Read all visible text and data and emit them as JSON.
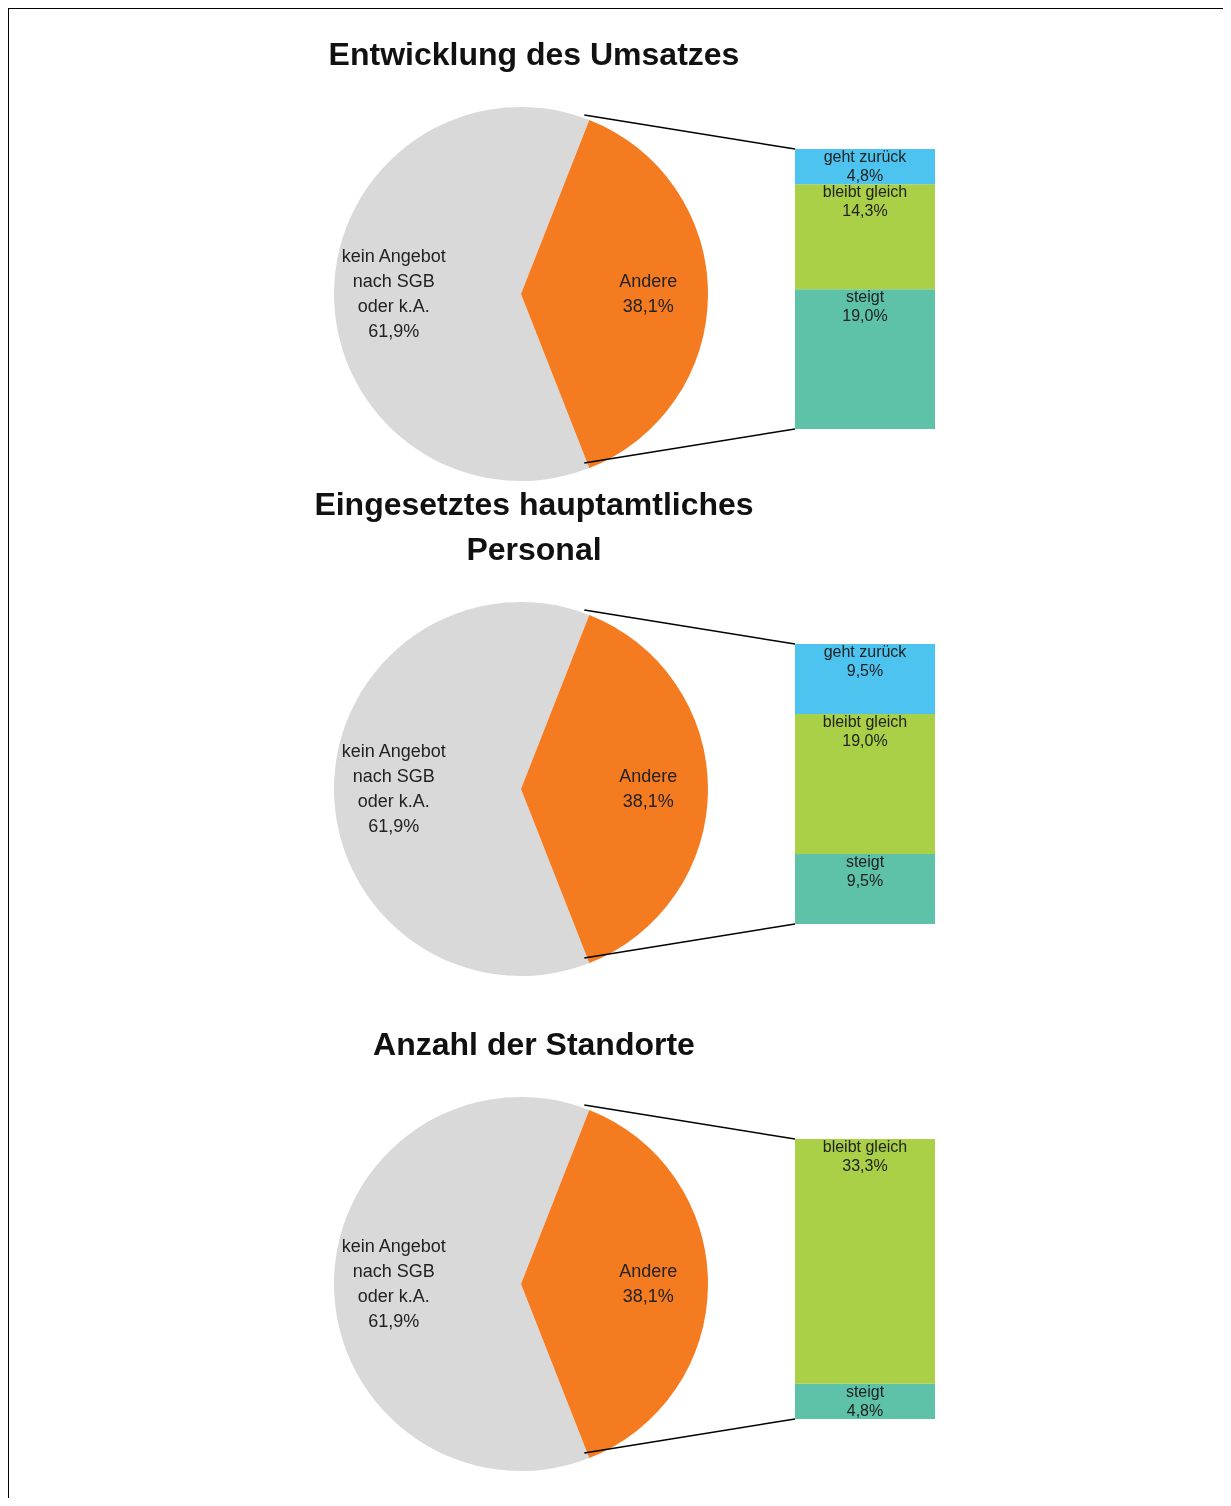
{
  "chart_data": [
    {
      "type": "pie",
      "title": "Entwicklung des Umsatzes",
      "categories": [
        "kein Angebot nach SGB oder k.A.",
        "Andere"
      ],
      "values": [
        61.9,
        38.1
      ],
      "colors": [
        "#d9d9d9",
        "#f47b20"
      ],
      "value_labels": [
        "61,9%",
        "38,1%"
      ]
    },
    {
      "type": "bar",
      "stacked": true,
      "categories": [
        null
      ],
      "series": [
        {
          "name": "steigt",
          "color": "#5ec2a8",
          "values": [
            19.0
          ],
          "value_labels": [
            "19,0%"
          ]
        },
        {
          "name": "bleibt gleich",
          "color": "#a9d046",
          "values": [
            14.3
          ],
          "value_labels": [
            "14,3%"
          ]
        },
        {
          "name": "geht zurück",
          "color": "#4dc3f0",
          "values": [
            4.8
          ],
          "value_labels": [
            "4,8%"
          ]
        }
      ]
    },
    {
      "type": "pie",
      "title": "Eingesetztes hauptamtliches Personal",
      "categories": [
        "kein Angebot nach SGB oder k.A.",
        "Andere"
      ],
      "values": [
        61.9,
        38.1
      ],
      "colors": [
        "#d9d9d9",
        "#f47b20"
      ],
      "value_labels": [
        "61,9%",
        "38,1%"
      ]
    },
    {
      "type": "bar",
      "stacked": true,
      "categories": [
        null
      ],
      "series": [
        {
          "name": "steigt",
          "color": "#5ec2a8",
          "values": [
            9.5
          ],
          "value_labels": [
            "9,5%"
          ]
        },
        {
          "name": "bleibt gleich",
          "color": "#a9d046",
          "values": [
            19.0
          ],
          "value_labels": [
            "19,0%"
          ]
        },
        {
          "name": "geht zurück",
          "color": "#4dc3f0",
          "values": [
            9.5
          ],
          "value_labels": [
            "9,5%"
          ]
        }
      ]
    },
    {
      "type": "pie",
      "title": "Anzahl der Standorte",
      "categories": [
        "kein Angebot nach SGB oder k.A.",
        "Andere"
      ],
      "values": [
        61.9,
        38.1
      ],
      "colors": [
        "#d9d9d9",
        "#f47b20"
      ],
      "value_labels": [
        "61,9%",
        "38,1%"
      ]
    },
    {
      "type": "bar",
      "stacked": true,
      "categories": [
        null
      ],
      "series": [
        {
          "name": "steigt",
          "color": "#5ec2a8",
          "values": [
            4.8
          ],
          "value_labels": [
            "4,8%"
          ]
        },
        {
          "name": "bleibt gleich",
          "color": "#a9d046",
          "values": [
            33.3
          ],
          "value_labels": [
            "33,3%"
          ]
        }
      ]
    }
  ]
}
